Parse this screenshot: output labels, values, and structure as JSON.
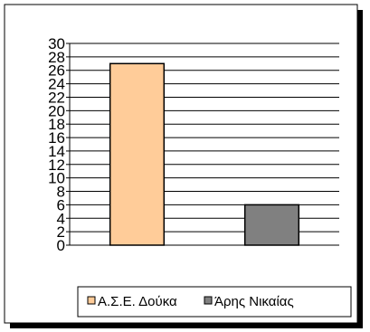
{
  "chart_data": {
    "type": "bar",
    "categories": [
      "Α.Σ.Ε. Δούκα",
      "Άρης Νικαίας"
    ],
    "values": [
      27,
      6
    ],
    "colors": [
      "#FFCC99",
      "#808080"
    ],
    "ylim": [
      0,
      30
    ],
    "yticks": [
      0,
      2,
      4,
      6,
      8,
      10,
      12,
      14,
      16,
      18,
      20,
      22,
      24,
      26,
      28,
      30
    ],
    "grid": true,
    "legend": {
      "position": "bottom-right",
      "entries": [
        {
          "label": "Α.Σ.Ε. Δούκα",
          "color": "#FFCC99"
        },
        {
          "label": "Άρης Νικαίας",
          "color": "#808080"
        }
      ]
    }
  }
}
